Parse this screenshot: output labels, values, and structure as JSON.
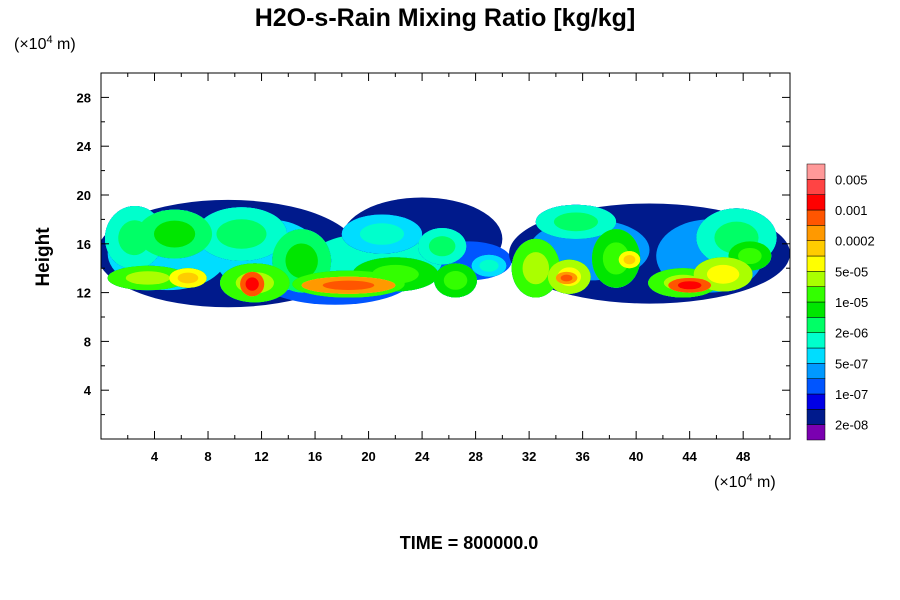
{
  "chart_data": {
    "type": "heatmap",
    "title": "H2O-s-Rain Mixing Ratio [kg/kg]",
    "ylabel": "Height",
    "x_unit": {
      "prefix": "(×10",
      "exp": "4",
      "suffix": " m)"
    },
    "y_unit": {
      "prefix": "(×10",
      "exp": "4",
      "suffix": " m)"
    },
    "footer": "TIME = 800000.0",
    "xlim": [
      0,
      51.5
    ],
    "ylim": [
      0,
      30
    ],
    "x_ticks": [
      4,
      8,
      12,
      16,
      20,
      24,
      28,
      32,
      36,
      40,
      44,
      48
    ],
    "y_ticks": [
      4,
      8,
      12,
      16,
      20,
      24,
      28
    ],
    "x_tick_labels": [
      "4",
      "8",
      "12",
      "16",
      "20",
      "24",
      "28",
      "32",
      "36",
      "40",
      "44",
      "48"
    ],
    "y_tick_labels": [
      "4",
      "8",
      "12",
      "16",
      "20",
      "24",
      "28"
    ],
    "colorbar": {
      "colors": [
        "#7a00b0",
        "#001a8c",
        "#0000e6",
        "#0055ff",
        "#0099ff",
        "#00ddff",
        "#00ffcc",
        "#00ff66",
        "#00e600",
        "#33ff00",
        "#aaff00",
        "#ffff00",
        "#ffcc00",
        "#ff9900",
        "#ff5500",
        "#ff0000",
        "#ff4444",
        "#ff9999"
      ],
      "labels": [
        "2e-08",
        "1e-07",
        "5e-07",
        "2e-06",
        "1e-05",
        "5e-05",
        "0.0002",
        "0.001",
        "0.005"
      ]
    },
    "fields": [
      {
        "x": 2.5,
        "y": 16.5,
        "rx": 2.2,
        "ry": 2.6,
        "level": 7,
        "tilt": 0.3
      },
      {
        "x": 5.5,
        "y": 16.8,
        "rx": 2.8,
        "ry": 2.0,
        "level": 8,
        "tilt": 0.0
      },
      {
        "x": 3.5,
        "y": 13.2,
        "rx": 3.0,
        "ry": 1.0,
        "level": 10,
        "tilt": 0.0
      },
      {
        "x": 6.5,
        "y": 13.2,
        "rx": 1.4,
        "ry": 0.8,
        "level": 12,
        "tilt": 0.0
      },
      {
        "x": 10.5,
        "y": 16.8,
        "rx": 3.4,
        "ry": 2.2,
        "level": 7,
        "tilt": 0.0
      },
      {
        "x": 11.5,
        "y": 12.8,
        "rx": 2.6,
        "ry": 1.6,
        "level": 10,
        "tilt": 0.0
      },
      {
        "x": 11.3,
        "y": 12.7,
        "rx": 0.9,
        "ry": 1.0,
        "level": 15,
        "tilt": 0.0
      },
      {
        "x": 15.0,
        "y": 14.6,
        "rx": 2.2,
        "ry": 2.6,
        "level": 8,
        "tilt": -0.2
      },
      {
        "x": 18.5,
        "y": 12.7,
        "rx": 4.2,
        "ry": 1.1,
        "level": 10,
        "tilt": 0.0
      },
      {
        "x": 18.5,
        "y": 12.6,
        "rx": 3.5,
        "ry": 0.7,
        "level": 14,
        "tilt": 0.0
      },
      {
        "x": 22.0,
        "y": 13.5,
        "rx": 3.2,
        "ry": 1.4,
        "level": 9,
        "tilt": 0.0
      },
      {
        "x": 21.0,
        "y": 16.8,
        "rx": 3.0,
        "ry": 1.6,
        "level": 6,
        "tilt": 0.0
      },
      {
        "x": 25.5,
        "y": 15.8,
        "rx": 1.8,
        "ry": 1.5,
        "level": 7,
        "tilt": 0.0
      },
      {
        "x": 26.5,
        "y": 13.0,
        "rx": 1.6,
        "ry": 1.4,
        "level": 9,
        "tilt": 0.0
      },
      {
        "x": 29.0,
        "y": 14.2,
        "rx": 1.3,
        "ry": 0.9,
        "level": 6,
        "tilt": 0.0
      },
      {
        "x": 32.5,
        "y": 14.0,
        "rx": 1.8,
        "ry": 2.4,
        "level": 10,
        "tilt": 0.0
      },
      {
        "x": 35.5,
        "y": 17.8,
        "rx": 3.0,
        "ry": 1.4,
        "level": 7,
        "tilt": 0.0
      },
      {
        "x": 35.0,
        "y": 13.3,
        "rx": 1.6,
        "ry": 1.4,
        "level": 11,
        "tilt": 0.0
      },
      {
        "x": 34.8,
        "y": 13.2,
        "rx": 0.8,
        "ry": 0.5,
        "level": 14,
        "tilt": 0.0
      },
      {
        "x": 38.5,
        "y": 14.8,
        "rx": 1.8,
        "ry": 2.4,
        "level": 9,
        "tilt": 0.0
      },
      {
        "x": 39.5,
        "y": 14.7,
        "rx": 0.8,
        "ry": 0.7,
        "level": 12,
        "tilt": 0.0
      },
      {
        "x": 43.5,
        "y": 12.8,
        "rx": 2.6,
        "ry": 1.2,
        "level": 10,
        "tilt": 0.0
      },
      {
        "x": 44.0,
        "y": 12.6,
        "rx": 1.6,
        "ry": 0.6,
        "level": 15,
        "tilt": 0.0
      },
      {
        "x": 46.5,
        "y": 13.5,
        "rx": 2.2,
        "ry": 1.4,
        "level": 11,
        "tilt": 0.0
      },
      {
        "x": 47.5,
        "y": 16.5,
        "rx": 3.0,
        "ry": 2.4,
        "level": 7,
        "tilt": 0.0
      },
      {
        "x": 48.5,
        "y": 15.0,
        "rx": 1.6,
        "ry": 1.2,
        "level": 9,
        "tilt": 0.0
      }
    ],
    "envelopes": [
      {
        "x": 9.5,
        "y": 15.2,
        "rx": 9.8,
        "ry": 4.4,
        "level": 1
      },
      {
        "x": 24.0,
        "y": 16.4,
        "rx": 6.0,
        "ry": 3.4,
        "level": 1
      },
      {
        "x": 17.5,
        "y": 13.4,
        "rx": 6.0,
        "ry": 2.4,
        "level": 3
      },
      {
        "x": 27.5,
        "y": 14.6,
        "rx": 3.2,
        "ry": 1.6,
        "level": 3
      },
      {
        "x": 41.0,
        "y": 15.2,
        "rx": 10.5,
        "ry": 4.1,
        "level": 1
      },
      {
        "x": 36.5,
        "y": 15.5,
        "rx": 4.5,
        "ry": 2.5,
        "level": 4
      },
      {
        "x": 45.5,
        "y": 15.0,
        "rx": 4.0,
        "ry": 3.0,
        "level": 4
      },
      {
        "x": 5.0,
        "y": 15.2,
        "rx": 4.5,
        "ry": 3.0,
        "level": 5
      },
      {
        "x": 12.5,
        "y": 15.0,
        "rx": 4.0,
        "ry": 3.0,
        "level": 5
      },
      {
        "x": 20.5,
        "y": 14.6,
        "rx": 5.0,
        "ry": 2.3,
        "level": 6
      }
    ]
  }
}
